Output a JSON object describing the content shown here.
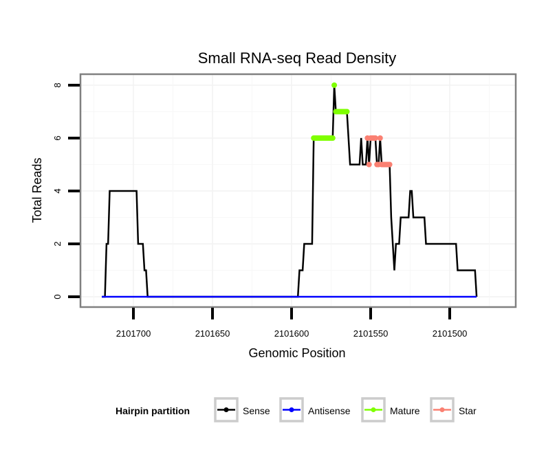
{
  "chart_data": {
    "type": "line",
    "title": "Small RNA-seq Read Density",
    "xlabel": "Genomic Position",
    "ylabel": "Total Reads",
    "x_reversed": true,
    "xlim": [
      2101730,
      2101455
    ],
    "ylim": [
      -0.4,
      8.4
    ],
    "xticks": [
      2101700,
      2101650,
      2101600,
      2101550,
      2101500
    ],
    "xtick_labels": [
      "2101700",
      "2101650",
      "2101600",
      "2101550",
      "2101500"
    ],
    "yticks": [
      0,
      2,
      4,
      6,
      8
    ],
    "ytick_labels": [
      "0",
      "2",
      "4",
      "6",
      "8"
    ],
    "grid": true,
    "legend": {
      "title": "Hairpin partition",
      "position": "bottom",
      "entries": [
        {
          "name": "Sense",
          "color": "#000000"
        },
        {
          "name": "Antisense",
          "color": "#0000ff"
        },
        {
          "name": "Mature",
          "color": "#7fff00"
        },
        {
          "name": "Star",
          "color": "#fa8072"
        }
      ]
    },
    "series": [
      {
        "name": "Sense",
        "color": "#000000",
        "style": "line",
        "points": [
          [
            2101720,
            0
          ],
          [
            2101718,
            0
          ],
          [
            2101717,
            2
          ],
          [
            2101716,
            2
          ],
          [
            2101715,
            4
          ],
          [
            2101698,
            4
          ],
          [
            2101697,
            2
          ],
          [
            2101694,
            2
          ],
          [
            2101693,
            1
          ],
          [
            2101692,
            1
          ],
          [
            2101691,
            0
          ],
          [
            2101596,
            0
          ],
          [
            2101595,
            1
          ],
          [
            2101593,
            1
          ],
          [
            2101592,
            2
          ],
          [
            2101587,
            2
          ],
          [
            2101586,
            6
          ],
          [
            2101574,
            6
          ],
          [
            2101573,
            8
          ],
          [
            2101572,
            7
          ],
          [
            2101565,
            7
          ],
          [
            2101563,
            5
          ],
          [
            2101557,
            5
          ],
          [
            2101556,
            6
          ],
          [
            2101555,
            5
          ],
          [
            2101553,
            5
          ],
          [
            2101552,
            6
          ],
          [
            2101551,
            5
          ],
          [
            2101550,
            6
          ],
          [
            2101549,
            6
          ],
          [
            2101548,
            6
          ],
          [
            2101547,
            6
          ],
          [
            2101546,
            5
          ],
          [
            2101545,
            5
          ],
          [
            2101544,
            6
          ],
          [
            2101543,
            5
          ],
          [
            2101542,
            5
          ],
          [
            2101541,
            5
          ],
          [
            2101540,
            5
          ],
          [
            2101539,
            5
          ],
          [
            2101538,
            5
          ],
          [
            2101537,
            3
          ],
          [
            2101536,
            2
          ],
          [
            2101535,
            1
          ],
          [
            2101534,
            2
          ],
          [
            2101532,
            2
          ],
          [
            2101531,
            3
          ],
          [
            2101526,
            3
          ],
          [
            2101525,
            4
          ],
          [
            2101524,
            4
          ],
          [
            2101523,
            3
          ],
          [
            2101516,
            3
          ],
          [
            2101515,
            2
          ],
          [
            2101496,
            2
          ],
          [
            2101495,
            1
          ],
          [
            2101484,
            1
          ],
          [
            2101483,
            0
          ]
        ]
      },
      {
        "name": "Antisense",
        "color": "#0000ff",
        "style": "line",
        "points": [
          [
            2101720,
            0
          ],
          [
            2101691,
            0
          ],
          [
            2101596,
            0
          ],
          [
            2101483,
            0
          ]
        ]
      },
      {
        "name": "Mature",
        "color": "#7fff00",
        "style": "points",
        "points": [
          [
            2101586,
            6
          ],
          [
            2101585,
            6
          ],
          [
            2101584,
            6
          ],
          [
            2101583,
            6
          ],
          [
            2101582,
            6
          ],
          [
            2101581,
            6
          ],
          [
            2101580,
            6
          ],
          [
            2101579,
            6
          ],
          [
            2101578,
            6
          ],
          [
            2101577,
            6
          ],
          [
            2101576,
            6
          ],
          [
            2101575,
            6
          ],
          [
            2101574,
            6
          ],
          [
            2101573,
            8
          ],
          [
            2101572,
            7
          ],
          [
            2101571,
            7
          ],
          [
            2101570,
            7
          ],
          [
            2101569,
            7
          ],
          [
            2101568,
            7
          ],
          [
            2101567,
            7
          ],
          [
            2101566,
            7
          ],
          [
            2101565,
            7
          ]
        ]
      },
      {
        "name": "Star",
        "color": "#fa8072",
        "style": "points",
        "points": [
          [
            2101552,
            6
          ],
          [
            2101551,
            5
          ],
          [
            2101550,
            6
          ],
          [
            2101549,
            6
          ],
          [
            2101548,
            6
          ],
          [
            2101547,
            6
          ],
          [
            2101546,
            5
          ],
          [
            2101545,
            5
          ],
          [
            2101544,
            6
          ],
          [
            2101543,
            5
          ],
          [
            2101542,
            5
          ],
          [
            2101541,
            5
          ],
          [
            2101540,
            5
          ],
          [
            2101539,
            5
          ],
          [
            2101538,
            5
          ]
        ]
      }
    ]
  }
}
